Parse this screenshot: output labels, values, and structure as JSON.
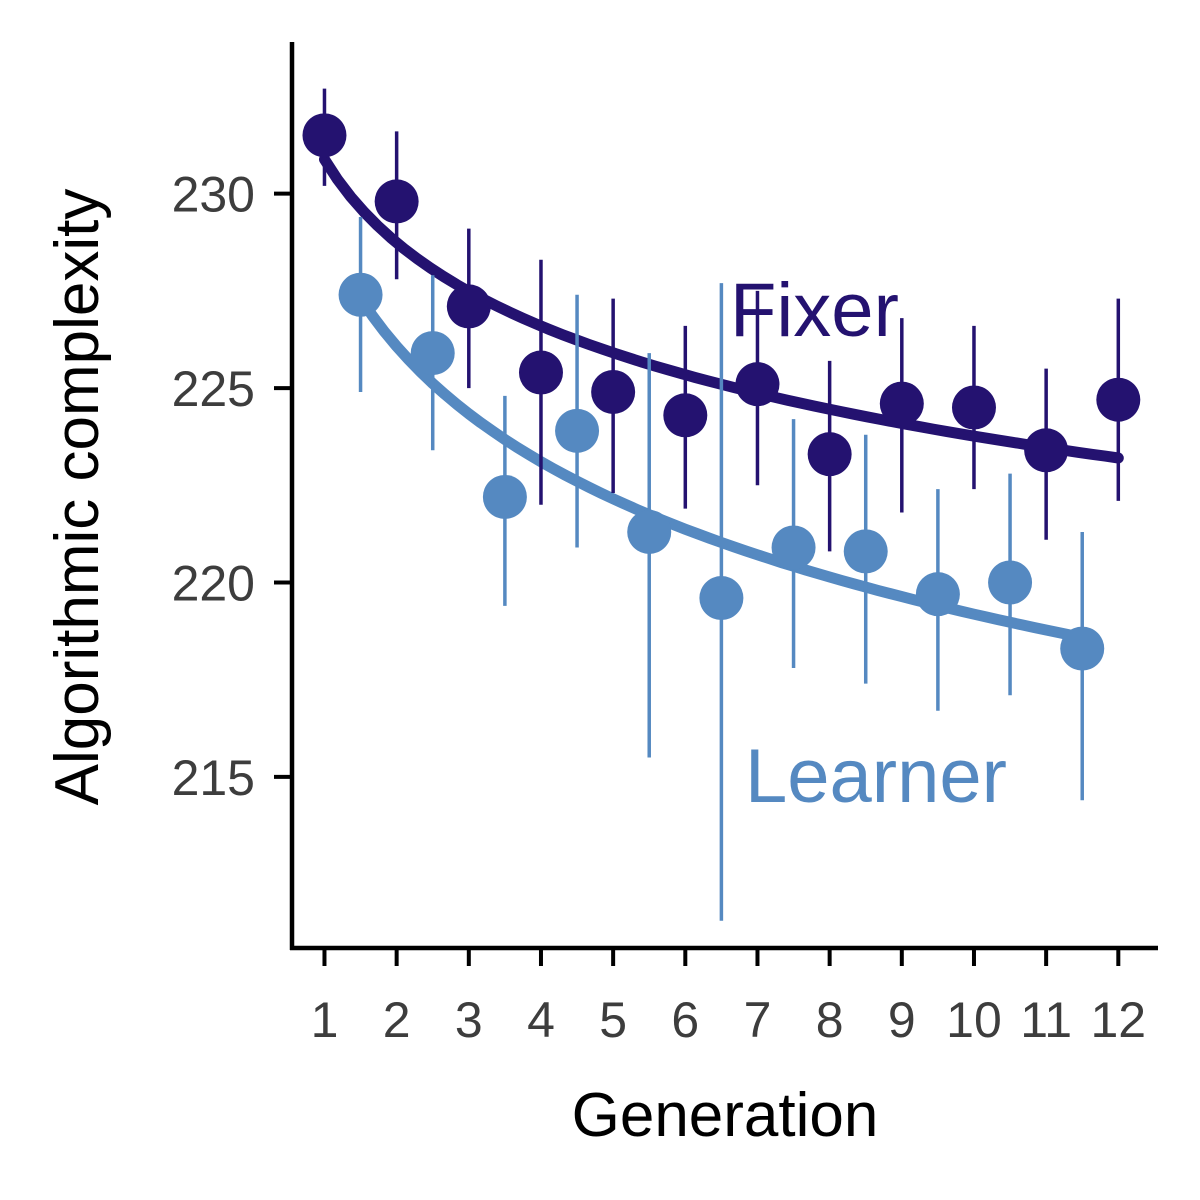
{
  "chart_data": {
    "type": "scatter",
    "xlabel": "Generation",
    "ylabel": "Algorithmic complexity",
    "x_ticks": [
      1,
      2,
      3,
      4,
      5,
      6,
      7,
      8,
      9,
      10,
      11,
      12
    ],
    "y_ticks": [
      215,
      220,
      225,
      230
    ],
    "xlim": [
      0.55,
      12.55
    ],
    "ylim": [
      210.6,
      233.9
    ],
    "grid": false,
    "legend": "none (series labels placed directly on the plot)",
    "series": [
      {
        "name": "Fixer",
        "color": "#241270",
        "x": [
          1,
          2,
          3,
          4,
          5,
          6,
          7,
          8,
          9,
          10,
          11,
          12
        ],
        "y": [
          231.5,
          229.8,
          227.1,
          225.4,
          224.9,
          224.3,
          225.1,
          223.3,
          224.6,
          224.5,
          223.4,
          224.7
        ],
        "error_low": [
          230.2,
          227.8,
          225.0,
          222.0,
          222.3,
          221.9,
          222.5,
          220.8,
          221.8,
          222.4,
          221.1,
          222.1
        ],
        "error_high": [
          232.7,
          231.6,
          229.1,
          228.3,
          227.3,
          226.6,
          227.5,
          225.7,
          226.8,
          226.6,
          225.5,
          227.3
        ],
        "fit": {
          "form": "a + b*ln(x)",
          "a": 230.88,
          "b": -3.09,
          "x_range": [
            1,
            12
          ]
        }
      },
      {
        "name": "Learner",
        "color": "#5589c1",
        "x": [
          1.5,
          2.5,
          3.5,
          4.5,
          5.5,
          6.5,
          7.5,
          8.5,
          9.5,
          10.5,
          11.5
        ],
        "y": [
          227.4,
          225.9,
          222.2,
          223.9,
          221.3,
          219.6,
          220.9,
          220.8,
          219.7,
          220.0,
          218.3
        ],
        "error_low": [
          224.9,
          223.4,
          219.4,
          220.9,
          215.5,
          211.3,
          217.8,
          217.4,
          216.7,
          217.1,
          214.4
        ],
        "error_high": [
          229.4,
          227.9,
          224.8,
          227.4,
          225.9,
          227.7,
          224.2,
          223.8,
          222.4,
          222.8,
          221.3
        ],
        "fit": {
          "form": "a + b*ln(x)",
          "a": 229.04,
          "b": -4.28,
          "x_range": [
            1.5,
            11.5
          ]
        }
      }
    ]
  }
}
